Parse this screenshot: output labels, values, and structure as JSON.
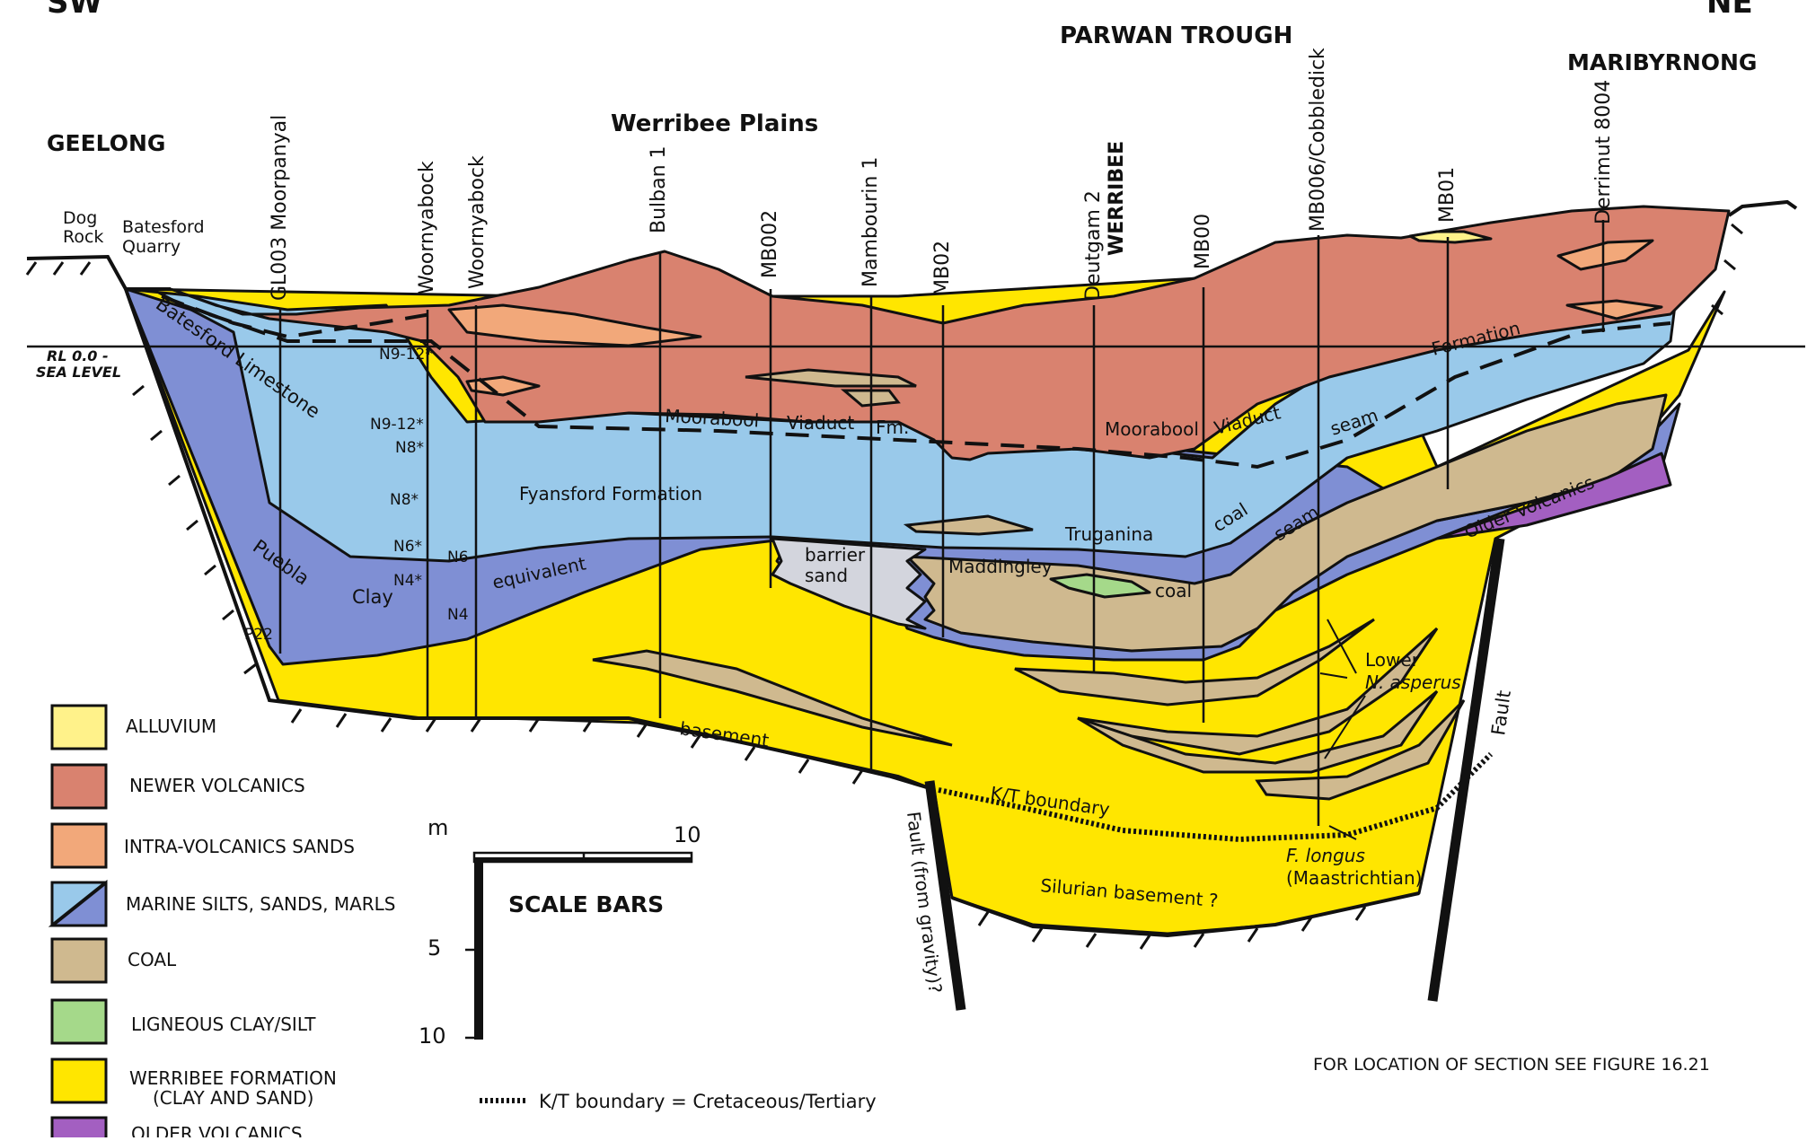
{
  "corners": {
    "left": "SW",
    "right": "NE"
  },
  "places": {
    "geelong": "GEELONG",
    "werribee_plains": "Werribee Plains",
    "parwan_trough": "PARWAN TROUGH",
    "maribyrnong": "MARIBYRNONG",
    "dog_rock": [
      "Dog",
      "Rock"
    ],
    "batesford_quarry": [
      "Batesford",
      "Quarry"
    ]
  },
  "sea_level": [
    "RL 0.0 -",
    "SEA LEVEL"
  ],
  "wells": [
    {
      "name": "GL003 Moorpanyal"
    },
    {
      "name": "Woornyabock"
    },
    {
      "name": "Woornyabock"
    },
    {
      "name": "Bulban 1"
    },
    {
      "name": "MB002"
    },
    {
      "name": "Mambourin 1"
    },
    {
      "name": "MB02"
    },
    {
      "name": "Deutgam 2"
    },
    {
      "name": "WERRIBEE"
    },
    {
      "name": "MB00"
    },
    {
      "name": "MB006/Cobbledick"
    },
    {
      "name": "MB01"
    },
    {
      "name": "Derrimut 8004"
    }
  ],
  "zones": [
    "N9-12*",
    "N9-12*",
    "N8*",
    "N8*",
    "N6*",
    "N6",
    "N4*",
    "N4",
    "P22"
  ],
  "unit_labels": {
    "batesford": "Batesford Limestone",
    "moorabool1": "Moorabool",
    "viaduct1": "Viaduct",
    "fm": "Fm.",
    "moorabool2": "Moorabool",
    "viaduct2": "Viaduct",
    "formation": "Formation",
    "seam1": "seam",
    "coal1": "coal",
    "seam2": "seam",
    "older_volcanics": "Older Volcanics",
    "fyansford": "Fyansford Formation",
    "truganina": "Truganina",
    "puebla": "Puebla",
    "clay": "Clay",
    "equivalent": "equivalent",
    "barrier": "barrier",
    "sand": "sand",
    "maddingley": "Maddingley",
    "coal2": "coal",
    "lower": "Lower",
    "n_asperus": "N. asperus",
    "basement": "basement",
    "kt_boundary": "K/T boundary",
    "fault1": "Fault (from gravity)?",
    "fault2": "Fault",
    "f_longus": "F. longus",
    "maastrichtian": "(Maastrichtian)",
    "silurian": "Silurian basement ?"
  },
  "legend": [
    {
      "label": "ALLUVIUM",
      "color": "#fff28a"
    },
    {
      "label": "NEWER VOLCANICS",
      "color": "#d9826f"
    },
    {
      "label": "INTRA-VOLCANICS SANDS",
      "color": "#f2a87a"
    },
    {
      "label": "MARINE SILTS, SANDS, MARLS",
      "color": "#99c9ea"
    },
    {
      "label": "COAL",
      "color": "#cfb98f"
    },
    {
      "label": "LIGNEOUS CLAY/SILT",
      "color": "#a5d98a"
    },
    {
      "label": "WERRIBEE FORMATION",
      "label2": "(CLAY AND SAND)",
      "color": "#ffe600"
    },
    {
      "label": "OLDER VOLCANICS",
      "color": "#a35fc1"
    }
  ],
  "scale": {
    "unit": "m",
    "top": "10",
    "mid": "5",
    "bottom": "10",
    "title": "SCALE BARS"
  },
  "kt_note": "K/T boundary = Cretaceous/Tertiary",
  "location_note": "FOR LOCATION OF SECTION SEE FIGURE 16.21"
}
